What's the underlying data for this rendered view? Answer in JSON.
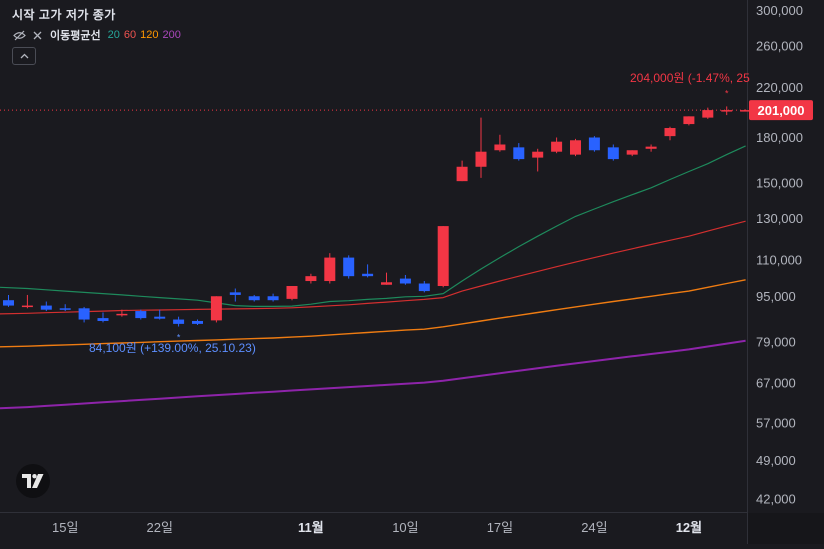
{
  "legend": {
    "ohlc_label": "시작 고가 저가 종가",
    "ma_name": "이동평균선",
    "ma_periods": [
      {
        "label": "20",
        "color": "#26a69a"
      },
      {
        "label": "60",
        "color": "#ef5350"
      },
      {
        "label": "120",
        "color": "#ff9800"
      },
      {
        "label": "200",
        "color": "#ab47bc"
      }
    ],
    "icons": [
      "eye-hidden-icon",
      "close-icon",
      "chevron-up-icon"
    ]
  },
  "current_price_label": "201,000",
  "max_annotation": "204,000원 (-1.47%, 25",
  "min_annotation": "84,100원 (+139.00%, 25.10.23)",
  "colors": {
    "up": "#f23645",
    "down": "#2962ff",
    "ma20": "#1e8a5c",
    "ma60": "#d32f2f",
    "ma120": "#ef7c12",
    "ma200": "#8e24aa",
    "price_line": "#f23645",
    "background": "#1a1a1f"
  },
  "chart_data": {
    "type": "candlestick",
    "y_scale": "log",
    "ylim": [
      40000,
      300000
    ],
    "y_ticks": [
      {
        "value": 300000,
        "label": "300,000"
      },
      {
        "value": 260000,
        "label": "260,000"
      },
      {
        "value": 220000,
        "label": "220,000"
      },
      {
        "value": 180000,
        "label": "180,000"
      },
      {
        "value": 150000,
        "label": "150,000"
      },
      {
        "value": 130000,
        "label": "130,000"
      },
      {
        "value": 110000,
        "label": "110,000"
      },
      {
        "value": 95000,
        "label": "95,000"
      },
      {
        "value": 79000,
        "label": "79,000"
      },
      {
        "value": 67000,
        "label": "67,000"
      },
      {
        "value": 57000,
        "label": "57,000"
      },
      {
        "value": 49000,
        "label": "49,000"
      },
      {
        "value": 42000,
        "label": "42,000"
      }
    ],
    "x_ticks": [
      {
        "index": 3,
        "label": "15일",
        "bold": false
      },
      {
        "index": 8,
        "label": "22일",
        "bold": false
      },
      {
        "index": 16,
        "label": "11월",
        "bold": true
      },
      {
        "index": 21,
        "label": "10일",
        "bold": false
      },
      {
        "index": 26,
        "label": "17일",
        "bold": false
      },
      {
        "index": 31,
        "label": "24일",
        "bold": false
      },
      {
        "index": 36,
        "label": "12월",
        "bold": true
      }
    ],
    "candles": [
      {
        "o": 93500,
        "h": 95500,
        "l": 91000,
        "c": 91500
      },
      {
        "o": 91000,
        "h": 95500,
        "l": 90500,
        "c": 91500
      },
      {
        "o": 91500,
        "h": 93000,
        "l": 89500,
        "c": 90000
      },
      {
        "o": 90500,
        "h": 92000,
        "l": 89500,
        "c": 90000
      },
      {
        "o": 90500,
        "h": 91000,
        "l": 85500,
        "c": 86500
      },
      {
        "o": 87000,
        "h": 89000,
        "l": 85500,
        "c": 86000
      },
      {
        "o": 88000,
        "h": 90000,
        "l": 87500,
        "c": 88500
      },
      {
        "o": 89500,
        "h": 90000,
        "l": 86500,
        "c": 87000
      },
      {
        "o": 87500,
        "h": 90000,
        "l": 86500,
        "c": 86800
      },
      {
        "o": 86500,
        "h": 87500,
        "l": 84100,
        "c": 85000
      },
      {
        "o": 86000,
        "h": 86500,
        "l": 84600,
        "c": 85000
      },
      {
        "o": 86200,
        "h": 95000,
        "l": 85500,
        "c": 95000
      },
      {
        "o": 96500,
        "h": 98000,
        "l": 93000,
        "c": 95500
      },
      {
        "o": 95000,
        "h": 95500,
        "l": 93000,
        "c": 93500
      },
      {
        "o": 95000,
        "h": 96000,
        "l": 93000,
        "c": 93500
      },
      {
        "o": 94000,
        "h": 99000,
        "l": 93500,
        "c": 99000
      },
      {
        "o": 101000,
        "h": 104000,
        "l": 100000,
        "c": 103000
      },
      {
        "o": 101000,
        "h": 113000,
        "l": 100000,
        "c": 111000
      },
      {
        "o": 111000,
        "h": 112000,
        "l": 102000,
        "c": 103000
      },
      {
        "o": 104000,
        "h": 108000,
        "l": 102500,
        "c": 103000
      },
      {
        "o": 99500,
        "h": 104500,
        "l": 99500,
        "c": 100500
      },
      {
        "o": 102000,
        "h": 103500,
        "l": 99500,
        "c": 100000
      },
      {
        "o": 100000,
        "h": 101000,
        "l": 96500,
        "c": 97000
      },
      {
        "o": 99000,
        "h": 126000,
        "l": 98500,
        "c": 126000
      },
      {
        "o": 151000,
        "h": 164000,
        "l": 151000,
        "c": 160000
      },
      {
        "o": 160000,
        "h": 195000,
        "l": 153000,
        "c": 170000
      },
      {
        "o": 171000,
        "h": 182000,
        "l": 170000,
        "c": 175000
      },
      {
        "o": 173000,
        "h": 176000,
        "l": 164000,
        "c": 165000
      },
      {
        "o": 166000,
        "h": 172000,
        "l": 157000,
        "c": 170000
      },
      {
        "o": 170000,
        "h": 180000,
        "l": 169000,
        "c": 177000
      },
      {
        "o": 168000,
        "h": 179000,
        "l": 167000,
        "c": 178000
      },
      {
        "o": 180000,
        "h": 181000,
        "l": 170000,
        "c": 171000
      },
      {
        "o": 173000,
        "h": 175000,
        "l": 164000,
        "c": 165000
      },
      {
        "o": 168000,
        "h": 171000,
        "l": 167000,
        "c": 171000
      },
      {
        "o": 172000,
        "h": 175000,
        "l": 170000,
        "c": 173500
      },
      {
        "o": 181000,
        "h": 188000,
        "l": 178000,
        "c": 187000
      },
      {
        "o": 190000,
        "h": 196000,
        "l": 189000,
        "c": 196000
      },
      {
        "o": 195000,
        "h": 203000,
        "l": 194000,
        "c": 201000
      },
      {
        "o": 201000,
        "h": 204000,
        "l": 197000,
        "c": 201000
      },
      {
        "o": 201000,
        "h": 201500,
        "l": 200500,
        "c": 201000
      }
    ],
    "moving_averages": [
      {
        "period": "20",
        "values": [
          98500,
          98000,
          97500,
          97000,
          96500,
          96000,
          95500,
          95000,
          94500,
          94000,
          93500,
          92500,
          91500,
          91200,
          91200,
          91300,
          92000,
          93000,
          93300,
          93800,
          94200,
          94800,
          95000,
          96000,
          101000,
          106000,
          111000,
          116000,
          121000,
          126000,
          131000,
          135000,
          139000,
          143000,
          147000,
          152000,
          157000,
          162000,
          168000,
          174000
        ]
      },
      {
        "period": "60",
        "values": [
          88500,
          88700,
          88900,
          89100,
          89300,
          89500,
          89700,
          89800,
          89900,
          90000,
          90100,
          90200,
          90300,
          90400,
          90500,
          90700,
          91000,
          91400,
          91800,
          92300,
          92800,
          93300,
          93800,
          94500,
          97000,
          99000,
          101000,
          103000,
          105000,
          107000,
          109000,
          111000,
          113000,
          115000,
          117000,
          119000,
          121000,
          123500,
          126000,
          128500
        ]
      },
      {
        "period": "120",
        "values": [
          77500,
          77700,
          77900,
          78100,
          78300,
          78500,
          78700,
          78900,
          79100,
          79300,
          79500,
          79700,
          79900,
          80100,
          80300,
          80600,
          80900,
          81300,
          81700,
          82100,
          82500,
          82900,
          83200,
          84000,
          85000,
          86000,
          87000,
          88000,
          89000,
          90000,
          91000,
          92000,
          93000,
          94000,
          95000,
          96000,
          97000,
          98500,
          100000,
          101500
        ]
      },
      {
        "period": "200",
        "values": [
          60500,
          60800,
          61100,
          61400,
          61700,
          62000,
          62300,
          62600,
          62900,
          63200,
          63500,
          63800,
          64100,
          64400,
          64700,
          65000,
          65300,
          65600,
          65900,
          66200,
          66500,
          66800,
          67100,
          67600,
          68300,
          69000,
          69700,
          70400,
          71100,
          71800,
          72500,
          73200,
          73900,
          74600,
          75300,
          76000,
          76700,
          77600,
          78500,
          79400
        ]
      }
    ],
    "current_price": 201000,
    "max_point": {
      "index": 38,
      "value": 204000
    },
    "min_point": {
      "index": 9,
      "value": 84100
    }
  }
}
